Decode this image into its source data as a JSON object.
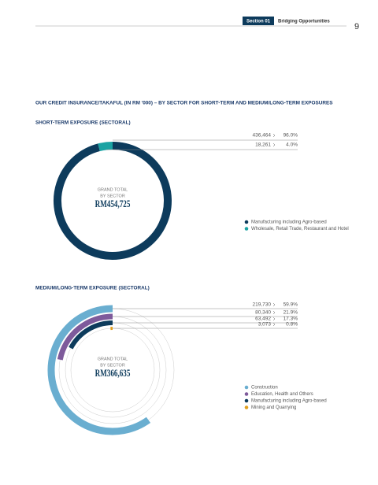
{
  "header": {
    "section": "Section 01",
    "title": "Bridging Opportunities",
    "page": "9"
  },
  "heading": "OUR CREDIT INSURANCE/TAKAFUL (IN RM '000) – BY SECTOR FOR SHORT-TERM AND MEDIUM/LONG-TERM EXPOSURES",
  "chart_data": [
    {
      "type": "donut",
      "title": "SHORT-TERM EXPOSURE (SECTORAL)",
      "total_title": [
        "GRAND TOTAL",
        "BY SECTOR"
      ],
      "total_label": "RM454,725",
      "categories": [
        "Manufacturing including Agro-based",
        "Wholesale, Retail Trade, Restaurant and Hotel"
      ],
      "colors": [
        "#0d3b5c",
        "#1ba3a3"
      ],
      "values": [
        436464,
        18261
      ],
      "value_labels": [
        "436,464",
        "18,261"
      ],
      "shares": [
        96,
        4
      ],
      "share_labels": [
        "96.0%",
        "4.0%"
      ]
    },
    {
      "type": "radial-bar",
      "title": "MEDIUM/LONG-TERM EXPOSURE (SECTORAL)",
      "total_title": [
        "GRAND TOTAL",
        "BY SECTOR"
      ],
      "total_label": "RM366,635",
      "categories": [
        "Construction",
        "Education, Health and Others",
        "Manufacturing including Agro-based",
        "Mining and Quarrying"
      ],
      "colors": [
        "#6aaed0",
        "#7e5a9b",
        "#0d3b5c",
        "#e0a020"
      ],
      "values": [
        219730,
        80340,
        63492,
        3073
      ],
      "value_labels": [
        "219,730",
        "80,340",
        "63,492",
        "3,073"
      ],
      "shares": [
        59.9,
        21.9,
        17.3,
        0.8
      ],
      "share_labels": [
        "59.9%",
        "21.9%",
        "17.3%",
        "0.8%"
      ]
    }
  ]
}
